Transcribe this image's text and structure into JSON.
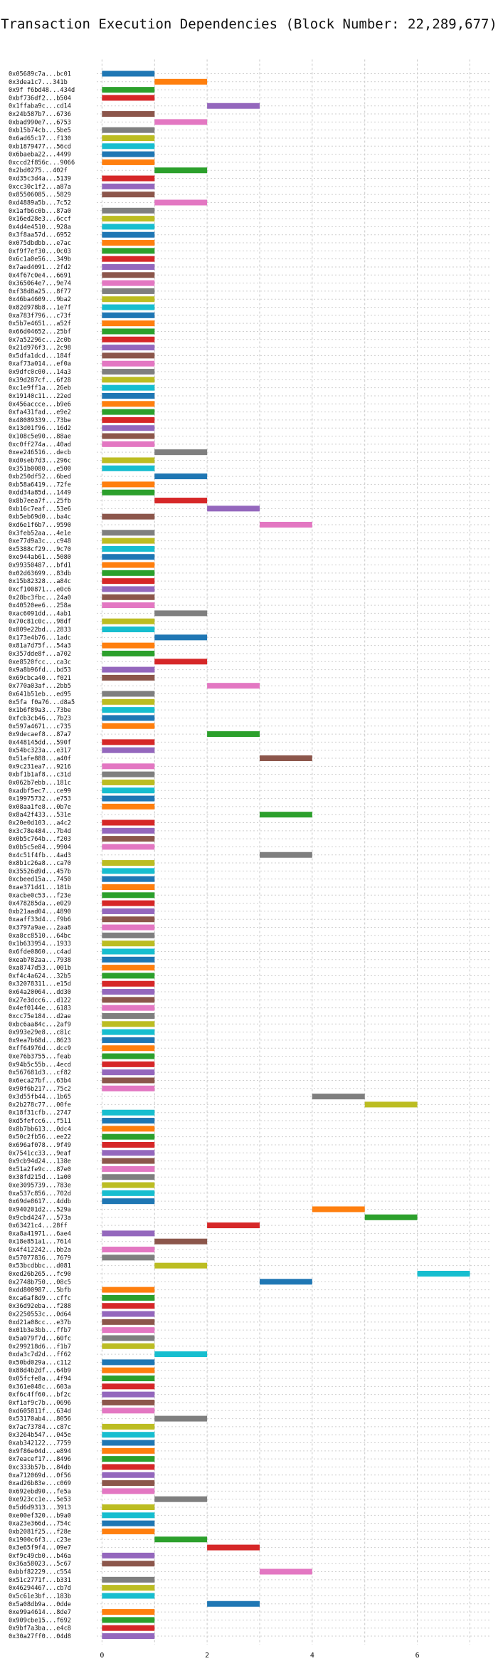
{
  "chart_data": {
    "type": "bar",
    "orientation": "horizontal",
    "title": "Transaction Execution Dependencies (Block Number: 22,289,677)",
    "xlabel": "",
    "ylabel": "",
    "xlim": [
      -0.1,
      7.4
    ],
    "xticks": [
      0,
      2,
      4,
      6
    ],
    "grid": true,
    "colors": [
      "#1f77b4",
      "#ff7f0e",
      "#2ca02c",
      "#d62728",
      "#9467bd",
      "#8c564b",
      "#e377c2",
      "#7f7f7f",
      "#bcbd22",
      "#17becf"
    ],
    "rows": [
      {
        "label": "0x05689c7a...bc01",
        "start": 0,
        "end": 1
      },
      {
        "label": "0x3dea1c7...341b",
        "start": 1,
        "end": 2
      },
      {
        "label": "0x9f f6bd48...434d",
        "start": 0,
        "end": 1
      },
      {
        "label": "0xbf736df2...b504",
        "start": 0,
        "end": 1
      },
      {
        "label": "0x1ffaba9c...cd14",
        "start": 2,
        "end": 3
      },
      {
        "label": "0x24b587b7...6736",
        "start": 0,
        "end": 1
      },
      {
        "label": "0xbad990e7...6753",
        "start": 1,
        "end": 2
      },
      {
        "label": "0xb15b74cb...5be5",
        "start": 0,
        "end": 1
      },
      {
        "label": "0x6ad65c17...f130",
        "start": 0,
        "end": 1
      },
      {
        "label": "0xb1879477...56cd",
        "start": 0,
        "end": 1
      },
      {
        "label": "0x6baeba22...4499",
        "start": 0,
        "end": 1
      },
      {
        "label": "0xccd2f856c...9066",
        "start": 0,
        "end": 1
      },
      {
        "label": "0x2bd0275...402f",
        "start": 1,
        "end": 2
      },
      {
        "label": "0xd35c3d4a...5139",
        "start": 0,
        "end": 1
      },
      {
        "label": "0xcc30c1f2...a87a",
        "start": 0,
        "end": 1
      },
      {
        "label": "0x85506085...5829",
        "start": 0,
        "end": 1
      },
      {
        "label": "0xd4889a5b...7c52",
        "start": 1,
        "end": 2
      },
      {
        "label": "0x1afb6c0b...87a0",
        "start": 0,
        "end": 1
      },
      {
        "label": "0x16ed28e3...6ccf",
        "start": 0,
        "end": 1
      },
      {
        "label": "0x4d4e4510...928a",
        "start": 0,
        "end": 1
      },
      {
        "label": "0x3f8aa57d...6952",
        "start": 0,
        "end": 1
      },
      {
        "label": "0x075dbdbb...e7ac",
        "start": 0,
        "end": 1
      },
      {
        "label": "0xf9f7ef30...0c03",
        "start": 0,
        "end": 1
      },
      {
        "label": "0x6c1a0e56...349b",
        "start": 0,
        "end": 1
      },
      {
        "label": "0x7aed4091...2fd2",
        "start": 0,
        "end": 1
      },
      {
        "label": "0x4f67c0e4...6691",
        "start": 0,
        "end": 1
      },
      {
        "label": "0x365064e7...9e74",
        "start": 0,
        "end": 1
      },
      {
        "label": "0xf38d8a25...8f77",
        "start": 0,
        "end": 1
      },
      {
        "label": "0x46ba4609...9ba2",
        "start": 0,
        "end": 1
      },
      {
        "label": "0x82d978b8...1e7f",
        "start": 0,
        "end": 1
      },
      {
        "label": "0xa783f796...c73f",
        "start": 0,
        "end": 1
      },
      {
        "label": "0x5b7e4651...a52f",
        "start": 0,
        "end": 1
      },
      {
        "label": "0x66d04652...25bf",
        "start": 0,
        "end": 1
      },
      {
        "label": "0x7a52296c...2c0b",
        "start": 0,
        "end": 1
      },
      {
        "label": "0x21d976f3...2c98",
        "start": 0,
        "end": 1
      },
      {
        "label": "0x5dfa1dcd...184f",
        "start": 0,
        "end": 1
      },
      {
        "label": "0xaf73a014...ef0a",
        "start": 0,
        "end": 1
      },
      {
        "label": "0x9dfc0c00...14a3",
        "start": 0,
        "end": 1
      },
      {
        "label": "0x39d287cf...6f28",
        "start": 0,
        "end": 1
      },
      {
        "label": "0xc1e9ff1a...26eb",
        "start": 0,
        "end": 1
      },
      {
        "label": "0x19140c11...22ed",
        "start": 0,
        "end": 1
      },
      {
        "label": "0x456accce...b9e6",
        "start": 0,
        "end": 1
      },
      {
        "label": "0xfa431fad...e9e2",
        "start": 0,
        "end": 1
      },
      {
        "label": "0x48089339...73be",
        "start": 0,
        "end": 1
      },
      {
        "label": "0x13d01f96...16d2",
        "start": 0,
        "end": 1
      },
      {
        "label": "0x108c5e90...88ae",
        "start": 0,
        "end": 1
      },
      {
        "label": "0xc0ff274a...40ad",
        "start": 0,
        "end": 1
      },
      {
        "label": "0xee246516...decb",
        "start": 1,
        "end": 2
      },
      {
        "label": "0xd0seb7d3...296c",
        "start": 0,
        "end": 1
      },
      {
        "label": "0x351b0080...e500",
        "start": 0,
        "end": 1
      },
      {
        "label": "0xb250df52...6bed",
        "start": 1,
        "end": 2
      },
      {
        "label": "0xb58a6419...72fe",
        "start": 0,
        "end": 1
      },
      {
        "label": "0xdd34a85d...1449",
        "start": 0,
        "end": 1
      },
      {
        "label": "0x8b7eea7f...25fb",
        "start": 1,
        "end": 2
      },
      {
        "label": "0xb16c7eaf...53e6",
        "start": 2,
        "end": 3
      },
      {
        "label": "0xb5eb69d0...ba4c",
        "start": 0,
        "end": 1
      },
      {
        "label": "0xd6e1f6b7...9590",
        "start": 3,
        "end": 4
      },
      {
        "label": "0x3feb52aa...4e1e",
        "start": 0,
        "end": 1
      },
      {
        "label": "0xe77d9a3c...c948",
        "start": 0,
        "end": 1
      },
      {
        "label": "0x5388cf29...9c70",
        "start": 0,
        "end": 1
      },
      {
        "label": "0xe944ab61...5080",
        "start": 0,
        "end": 1
      },
      {
        "label": "0x99350487...bfd1",
        "start": 0,
        "end": 1
      },
      {
        "label": "0x02d63699...83db",
        "start": 0,
        "end": 1
      },
      {
        "label": "0x15b82328...a84c",
        "start": 0,
        "end": 1
      },
      {
        "label": "0xcf100871...e0c6",
        "start": 0,
        "end": 1
      },
      {
        "label": "0x28bc3fbc...24a0",
        "start": 0,
        "end": 1
      },
      {
        "label": "0x40520ee6...258a",
        "start": 0,
        "end": 1
      },
      {
        "label": "0xac6091dd...4ab1",
        "start": 1,
        "end": 2
      },
      {
        "label": "0x70c81c0c...98df",
        "start": 0,
        "end": 1
      },
      {
        "label": "0x809e22bd...2833",
        "start": 0,
        "end": 1
      },
      {
        "label": "0x173e4b76...1adc",
        "start": 1,
        "end": 2
      },
      {
        "label": "0x81a7d75f...54a3",
        "start": 0,
        "end": 1
      },
      {
        "label": "0x357dde8f...a702",
        "start": 0,
        "end": 1
      },
      {
        "label": "0xe8520fcc...ca3c",
        "start": 1,
        "end": 2
      },
      {
        "label": "0x9a8b96fd...bd53",
        "start": 0,
        "end": 1
      },
      {
        "label": "0x69cbca40...f021",
        "start": 0,
        "end": 1
      },
      {
        "label": "0x770a03af...2bb5",
        "start": 2,
        "end": 3
      },
      {
        "label": "0x641b51eb...ed95",
        "start": 0,
        "end": 1
      },
      {
        "label": "0x5fa f0a76...d8a5",
        "start": 0,
        "end": 1
      },
      {
        "label": "0x1b6f89a3...73be",
        "start": 0,
        "end": 1
      },
      {
        "label": "0xfcb3cb46...7b23",
        "start": 0,
        "end": 1
      },
      {
        "label": "0x597a4671...c735",
        "start": 0,
        "end": 1
      },
      {
        "label": "0x9decaef8...87a7",
        "start": 2,
        "end": 3
      },
      {
        "label": "0x448145dd...590f",
        "start": 0,
        "end": 1
      },
      {
        "label": "0x54bc323a...e317",
        "start": 0,
        "end": 1
      },
      {
        "label": "0x51afe888...a40f",
        "start": 3,
        "end": 4
      },
      {
        "label": "0x9c231ea7...9216",
        "start": 0,
        "end": 1
      },
      {
        "label": "0xbf1b1af8...c31d",
        "start": 0,
        "end": 1
      },
      {
        "label": "0x062b7ebb...181c",
        "start": 0,
        "end": 1
      },
      {
        "label": "0xadbf5ec7...ce99",
        "start": 0,
        "end": 1
      },
      {
        "label": "0x19975732...e753",
        "start": 0,
        "end": 1
      },
      {
        "label": "0x08aa1fe8...0b7e",
        "start": 0,
        "end": 1
      },
      {
        "label": "0x8a42f433...531e",
        "start": 3,
        "end": 4
      },
      {
        "label": "0x20e0d103...a4c2",
        "start": 0,
        "end": 1
      },
      {
        "label": "0x3c78e484...7b4d",
        "start": 0,
        "end": 1
      },
      {
        "label": "0x0b5c764b...f203",
        "start": 0,
        "end": 1
      },
      {
        "label": "0x0b5c5e84...9904",
        "start": 0,
        "end": 1
      },
      {
        "label": "0x4c51f4fb...4ad3",
        "start": 3,
        "end": 4
      },
      {
        "label": "0x8b1c26a8...ca70",
        "start": 0,
        "end": 1
      },
      {
        "label": "0x35526d9d...457b",
        "start": 0,
        "end": 1
      },
      {
        "label": "0xcbeed15a...7450",
        "start": 0,
        "end": 1
      },
      {
        "label": "0xae371d41...181b",
        "start": 0,
        "end": 1
      },
      {
        "label": "0xacbe0c53...f23e",
        "start": 0,
        "end": 1
      },
      {
        "label": "0x478285da...e029",
        "start": 0,
        "end": 1
      },
      {
        "label": "0xb21aad04...4890",
        "start": 0,
        "end": 1
      },
      {
        "label": "0xaaff33d4...f9b6",
        "start": 0,
        "end": 1
      },
      {
        "label": "0x3797a9ae...2aa8",
        "start": 0,
        "end": 1
      },
      {
        "label": "0xa8cc8510...64bc",
        "start": 0,
        "end": 1
      },
      {
        "label": "0x1b633954...1933",
        "start": 0,
        "end": 1
      },
      {
        "label": "0x6fde0860...c4ad",
        "start": 0,
        "end": 1
      },
      {
        "label": "0xeab782aa...7938",
        "start": 0,
        "end": 1
      },
      {
        "label": "0xa8747d53...001b",
        "start": 0,
        "end": 1
      },
      {
        "label": "0xf4c4a624...32b5",
        "start": 0,
        "end": 1
      },
      {
        "label": "0x32078311...e15d",
        "start": 0,
        "end": 1
      },
      {
        "label": "0x64a20064...dd30",
        "start": 0,
        "end": 1
      },
      {
        "label": "0x27e3dcc6...d122",
        "start": 0,
        "end": 1
      },
      {
        "label": "0x4ef0144e...6183",
        "start": 0,
        "end": 1
      },
      {
        "label": "0xcc75e184...d2ae",
        "start": 0,
        "end": 1
      },
      {
        "label": "0xbc6aa84c...2af9",
        "start": 0,
        "end": 1
      },
      {
        "label": "0x993e29e8...c81c",
        "start": 0,
        "end": 1
      },
      {
        "label": "0x9ea7b68d...8623",
        "start": 0,
        "end": 1
      },
      {
        "label": "0xff64976d...dcc9",
        "start": 0,
        "end": 1
      },
      {
        "label": "0xe76b3755...feab",
        "start": 0,
        "end": 1
      },
      {
        "label": "0x94b5c55b...4ecd",
        "start": 0,
        "end": 1
      },
      {
        "label": "0x567681d3...cf82",
        "start": 0,
        "end": 1
      },
      {
        "label": "0x6eca27bf...63b4",
        "start": 0,
        "end": 1
      },
      {
        "label": "0x90f6b217...75c2",
        "start": 0,
        "end": 1
      },
      {
        "label": "0x3d55fb44...1b65",
        "start": 4,
        "end": 5
      },
      {
        "label": "0x2b278c77...00fe",
        "start": 5,
        "end": 6
      },
      {
        "label": "0x18f31cfb...2747",
        "start": 0,
        "end": 1
      },
      {
        "label": "0xd5fefcc6...f511",
        "start": 0,
        "end": 1
      },
      {
        "label": "0x8b7bb613...0dc4",
        "start": 0,
        "end": 1
      },
      {
        "label": "0x50c2fb56...ee22",
        "start": 0,
        "end": 1
      },
      {
        "label": "0x696af078...9f49",
        "start": 0,
        "end": 1
      },
      {
        "label": "0x7541cc33...9eaf",
        "start": 0,
        "end": 1
      },
      {
        "label": "0x9cb94d24...138e",
        "start": 0,
        "end": 1
      },
      {
        "label": "0x51a2fe9c...87e0",
        "start": 0,
        "end": 1
      },
      {
        "label": "0x38fd215d...1a00",
        "start": 0,
        "end": 1
      },
      {
        "label": "0xe3095739...783e",
        "start": 0,
        "end": 1
      },
      {
        "label": "0xa537c856...702d",
        "start": 0,
        "end": 1
      },
      {
        "label": "0x69de8617...4ddb",
        "start": 0,
        "end": 1
      },
      {
        "label": "0x940201d2...529a",
        "start": 4,
        "end": 5
      },
      {
        "label": "0x9cbd4247...573a",
        "start": 5,
        "end": 6
      },
      {
        "label": "0x63421c4...28ff",
        "start": 2,
        "end": 3
      },
      {
        "label": "0xa8a41971...6ae4",
        "start": 0,
        "end": 1
      },
      {
        "label": "0x18e851a1...7614",
        "start": 1,
        "end": 2
      },
      {
        "label": "0x4f412242...bb2a",
        "start": 0,
        "end": 1
      },
      {
        "label": "0x57077836...7679",
        "start": 0,
        "end": 1
      },
      {
        "label": "0x53bcdbbc...d081",
        "start": 1,
        "end": 2
      },
      {
        "label": "0xed26b265...fc90",
        "start": 6,
        "end": 7
      },
      {
        "label": "0x2748b750...08c5",
        "start": 3,
        "end": 4
      },
      {
        "label": "0xdd800987...5bfb",
        "start": 0,
        "end": 1
      },
      {
        "label": "0xca6af8d9...cffc",
        "start": 0,
        "end": 1
      },
      {
        "label": "0x36d92eba...f288",
        "start": 0,
        "end": 1
      },
      {
        "label": "0x2250553c...0d64",
        "start": 0,
        "end": 1
      },
      {
        "label": "0xd21a08cc...e37b",
        "start": 0,
        "end": 1
      },
      {
        "label": "0x01b3e3bb...ffb7",
        "start": 0,
        "end": 1
      },
      {
        "label": "0x5a079f7d...60fc",
        "start": 0,
        "end": 1
      },
      {
        "label": "0x299218d6...f1b7",
        "start": 0,
        "end": 1
      },
      {
        "label": "0xda3c7d2d...ff62",
        "start": 1,
        "end": 2
      },
      {
        "label": "0x50bd029a...c112",
        "start": 0,
        "end": 1
      },
      {
        "label": "0x88d4b2df...64b9",
        "start": 0,
        "end": 1
      },
      {
        "label": "0x05fcfe8a...4f94",
        "start": 0,
        "end": 1
      },
      {
        "label": "0x361e048c...603a",
        "start": 0,
        "end": 1
      },
      {
        "label": "0xf6c4ff60...bf2c",
        "start": 0,
        "end": 1
      },
      {
        "label": "0xf1af9c7b...0696",
        "start": 0,
        "end": 1
      },
      {
        "label": "0xd605811f...634d",
        "start": 0,
        "end": 1
      },
      {
        "label": "0x53170ab4...8056",
        "start": 1,
        "end": 2
      },
      {
        "label": "0x7ac73784...c87c",
        "start": 0,
        "end": 1
      },
      {
        "label": "0x3264b547...045e",
        "start": 0,
        "end": 1
      },
      {
        "label": "0xab342122...7759",
        "start": 0,
        "end": 1
      },
      {
        "label": "0x9f86e04d...e894",
        "start": 0,
        "end": 1
      },
      {
        "label": "0x7eacef17...8496",
        "start": 0,
        "end": 1
      },
      {
        "label": "0xc333b57b...84db",
        "start": 0,
        "end": 1
      },
      {
        "label": "0xa712069d...0f56",
        "start": 0,
        "end": 1
      },
      {
        "label": "0xad26b83e...c069",
        "start": 0,
        "end": 1
      },
      {
        "label": "0x692ebd90...fe5a",
        "start": 0,
        "end": 1
      },
      {
        "label": "0xe923cc1e...5e53",
        "start": 1,
        "end": 2
      },
      {
        "label": "0x5d6d9313...3913",
        "start": 0,
        "end": 1
      },
      {
        "label": "0xe00ef320...b9a0",
        "start": 0,
        "end": 1
      },
      {
        "label": "0xa23e366d...754c",
        "start": 0,
        "end": 1
      },
      {
        "label": "0xb2081f25...f28e",
        "start": 0,
        "end": 1
      },
      {
        "label": "0x1900c6f3...c23e",
        "start": 1,
        "end": 2
      },
      {
        "label": "0x3e65f9f4...09e7",
        "start": 2,
        "end": 3
      },
      {
        "label": "0xf9c49cb0...b46a",
        "start": 0,
        "end": 1
      },
      {
        "label": "0x36a58023...5c67",
        "start": 0,
        "end": 1
      },
      {
        "label": "0xbbf82229...c554",
        "start": 3,
        "end": 4
      },
      {
        "label": "0x51c2771f...b331",
        "start": 0,
        "end": 1
      },
      {
        "label": "0x46294467...cb7d",
        "start": 0,
        "end": 1
      },
      {
        "label": "0x5c61e3bf...183b",
        "start": 0,
        "end": 1
      },
      {
        "label": "0x5a08db9a...0dde",
        "start": 2,
        "end": 3
      },
      {
        "label": "0xe99a4614...8de7",
        "start": 0,
        "end": 1
      },
      {
        "label": "0x909cbe15...f692",
        "start": 0,
        "end": 1
      },
      {
        "label": "0x9bf7a3ba...e4c8",
        "start": 0,
        "end": 1
      },
      {
        "label": "0x30a27ff0...04d8",
        "start": 0,
        "end": 1
      }
    ]
  }
}
